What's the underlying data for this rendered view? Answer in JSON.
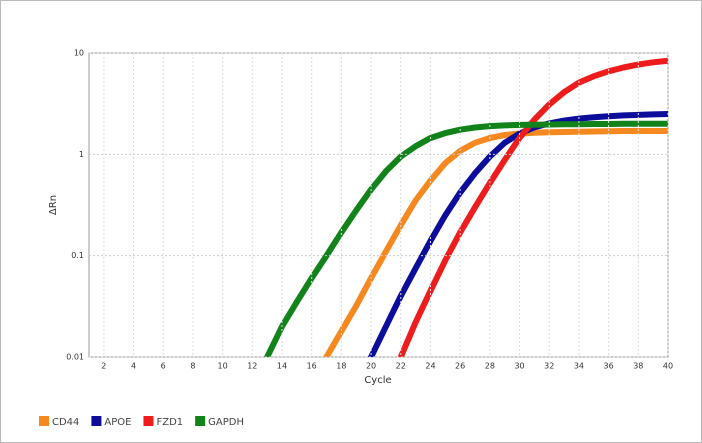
{
  "chart_data": {
    "type": "line",
    "x_label": "Cycle",
    "y_label": "ΔRn",
    "log_y": true,
    "grid": true,
    "x": [
      1,
      2,
      3,
      4,
      5,
      6,
      7,
      8,
      9,
      10,
      11,
      12,
      13,
      14,
      15,
      16,
      17,
      18,
      19,
      20,
      21,
      22,
      23,
      24,
      25,
      26,
      27,
      28,
      29,
      30,
      31,
      32,
      33,
      34,
      35,
      36,
      37,
      38,
      39,
      40
    ],
    "xlim": [
      1,
      40
    ],
    "xticks": [
      2,
      4,
      6,
      8,
      10,
      12,
      14,
      16,
      18,
      20,
      22,
      24,
      26,
      28,
      30,
      32,
      34,
      36,
      38,
      40
    ],
    "ylim": [
      0.01,
      10
    ],
    "yticks": [
      0.01,
      0.1,
      1,
      10
    ],
    "series": [
      {
        "name": "CD44",
        "color": "#f5891f",
        "values": [
          null,
          null,
          null,
          null,
          null,
          null,
          null,
          null,
          null,
          null,
          null,
          null,
          null,
          null,
          null,
          null,
          0.01,
          0.018,
          0.032,
          0.06,
          0.11,
          0.2,
          0.35,
          0.55,
          0.82,
          1.08,
          1.3,
          1.45,
          1.55,
          1.6,
          1.63,
          1.65,
          1.66,
          1.67,
          1.68,
          1.69,
          1.7,
          1.7,
          1.7,
          1.7
        ]
      },
      {
        "name": "APOE",
        "color": "#0d0d9c",
        "values": [
          null,
          null,
          null,
          null,
          null,
          null,
          null,
          null,
          null,
          null,
          null,
          null,
          null,
          null,
          null,
          null,
          null,
          null,
          null,
          0.01,
          0.02,
          0.04,
          0.075,
          0.14,
          0.25,
          0.42,
          0.65,
          0.95,
          1.3,
          1.6,
          1.85,
          2.02,
          2.15,
          2.25,
          2.32,
          2.38,
          2.42,
          2.45,
          2.48,
          2.5
        ]
      },
      {
        "name": "FZD1",
        "color": "#ee1c1c",
        "values": [
          null,
          null,
          null,
          null,
          null,
          null,
          null,
          null,
          null,
          null,
          null,
          null,
          null,
          null,
          null,
          null,
          null,
          null,
          null,
          null,
          null,
          0.01,
          0.022,
          0.045,
          0.09,
          0.17,
          0.3,
          0.52,
          0.88,
          1.45,
          2.2,
          3.1,
          4.1,
          5.1,
          5.9,
          6.6,
          7.2,
          7.7,
          8.1,
          8.4
        ]
      },
      {
        "name": "GAPDH",
        "color": "#12821a",
        "values": [
          null,
          null,
          null,
          null,
          null,
          null,
          null,
          null,
          null,
          null,
          null,
          null,
          0.01,
          0.02,
          0.035,
          0.06,
          0.1,
          0.17,
          0.28,
          0.45,
          0.68,
          0.95,
          1.2,
          1.45,
          1.62,
          1.75,
          1.84,
          1.9,
          1.93,
          1.95,
          1.96,
          1.97,
          1.98,
          1.98,
          1.99,
          1.99,
          2,
          2,
          2,
          2
        ]
      }
    ]
  }
}
